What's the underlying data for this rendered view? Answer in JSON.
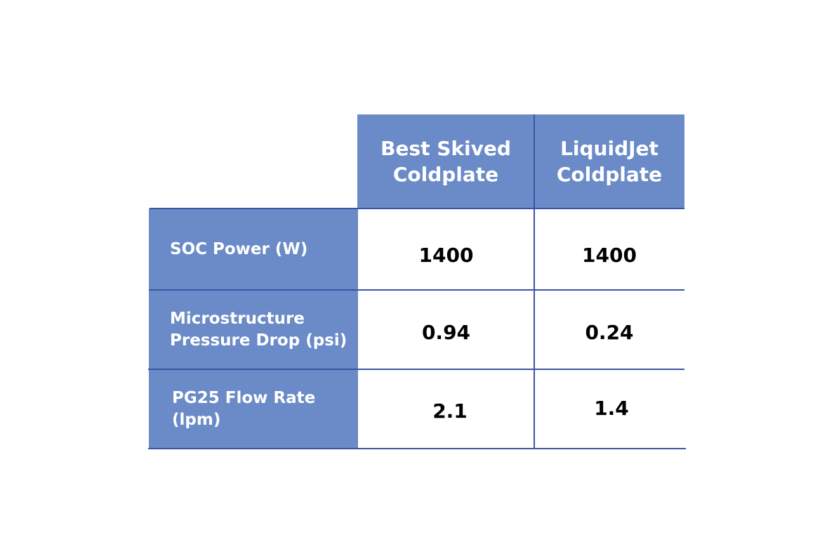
{
  "table": {
    "columns": [
      "Best Skived\nColdplate",
      "LiquidJet\nColdplate"
    ],
    "rows": [
      {
        "label": "SOC Power (W)",
        "values": [
          "1400",
          "1400"
        ]
      },
      {
        "label": "Microstructure\nPressure Drop (psi)",
        "values": [
          "0.94",
          "0.24"
        ]
      },
      {
        "label": "PG25 Flow Rate\n(lpm)",
        "values": [
          "2.1",
          "1.4"
        ]
      }
    ]
  },
  "colors": {
    "header_fill": "#6a8bc7",
    "grid_line": "#3a55a6"
  }
}
